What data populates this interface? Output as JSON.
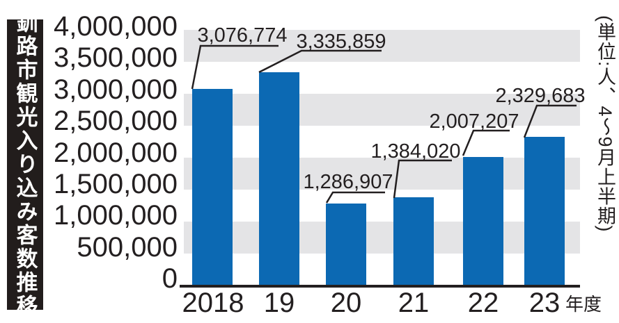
{
  "banner": {
    "title": "釧路市観光入り込み客数推移"
  },
  "side_note": "(単位:人、4〜9月上半期)",
  "chart_data": {
    "type": "bar",
    "title": "釧路市観光入り込み客数推移",
    "unit_note": "単位:人、4〜9月上半期",
    "categories": [
      "2018",
      "19",
      "20",
      "21",
      "22",
      "23"
    ],
    "x_axis_suffix": "年度",
    "values": [
      3076774,
      3335859,
      1286907,
      1384020,
      2007207,
      2329683
    ],
    "value_labels": [
      "3,076,774",
      "3,335,859",
      "1,286,907",
      "1,384,020",
      "2,007,207",
      "2,329,683"
    ],
    "ylim": [
      0,
      4000000
    ],
    "y_tick_step": 500000,
    "y_tick_labels": [
      "4,000,000",
      "3,500,000",
      "3,000,000",
      "2,500,000",
      "2,000,000",
      "1,500,000",
      "1,000,000",
      "500,000",
      "0"
    ],
    "bar_color": "#0c69b3",
    "band_color": "#e4e4e6",
    "text_color": "#231f20",
    "grid": "alternating-horizontal-bands",
    "legend": "none"
  }
}
